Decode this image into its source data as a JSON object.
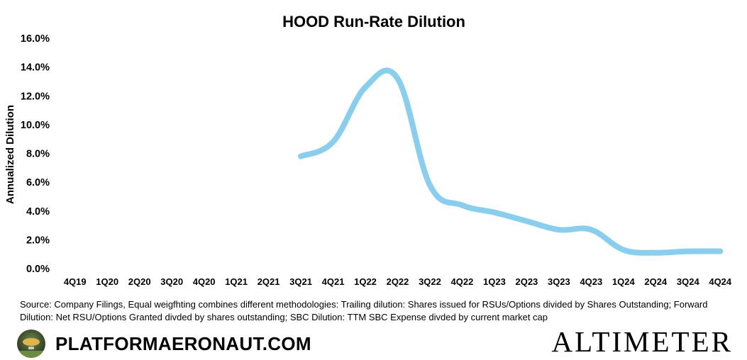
{
  "chart_data": {
    "type": "line",
    "title": "HOOD Run-Rate Dilution",
    "ylabel": "Annualized Dilution",
    "xlabel": "",
    "ylim": [
      0,
      16
    ],
    "yticks": [
      "0.0%",
      "2.0%",
      "4.0%",
      "6.0%",
      "8.0%",
      "10.0%",
      "12.0%",
      "14.0%",
      "16.0%"
    ],
    "categories": [
      "4Q19",
      "1Q20",
      "2Q20",
      "3Q20",
      "4Q20",
      "1Q21",
      "2Q21",
      "3Q21",
      "4Q21",
      "1Q22",
      "2Q22",
      "3Q22",
      "4Q22",
      "1Q23",
      "2Q23",
      "3Q23",
      "4Q23",
      "1Q24",
      "2Q24",
      "3Q24",
      "4Q24"
    ],
    "series": [
      {
        "color": "#87ceef",
        "values": [
          null,
          null,
          null,
          null,
          null,
          null,
          null,
          7.8,
          8.8,
          12.6,
          13.2,
          5.8,
          4.4,
          3.9,
          3.3,
          2.7,
          2.7,
          1.3,
          1.1,
          1.2,
          1.2
        ]
      }
    ],
    "grid": false,
    "legend": "none"
  },
  "footer": {
    "source": "Source: Company Filings, Equal weigfhting combines different methodologies: Trailing dilution: Shares issued for RSUs/Options divided by Shares Outstanding; Forward Dilution: Net RSU/Options Granted divded by shares outstanding; SBC Dilution: TTM SBC Expense divded by current market cap",
    "brand": "PLATFORMAERONAUT.COM",
    "logo_icon": "airship-logo-icon",
    "company": "ALTIMETER"
  }
}
